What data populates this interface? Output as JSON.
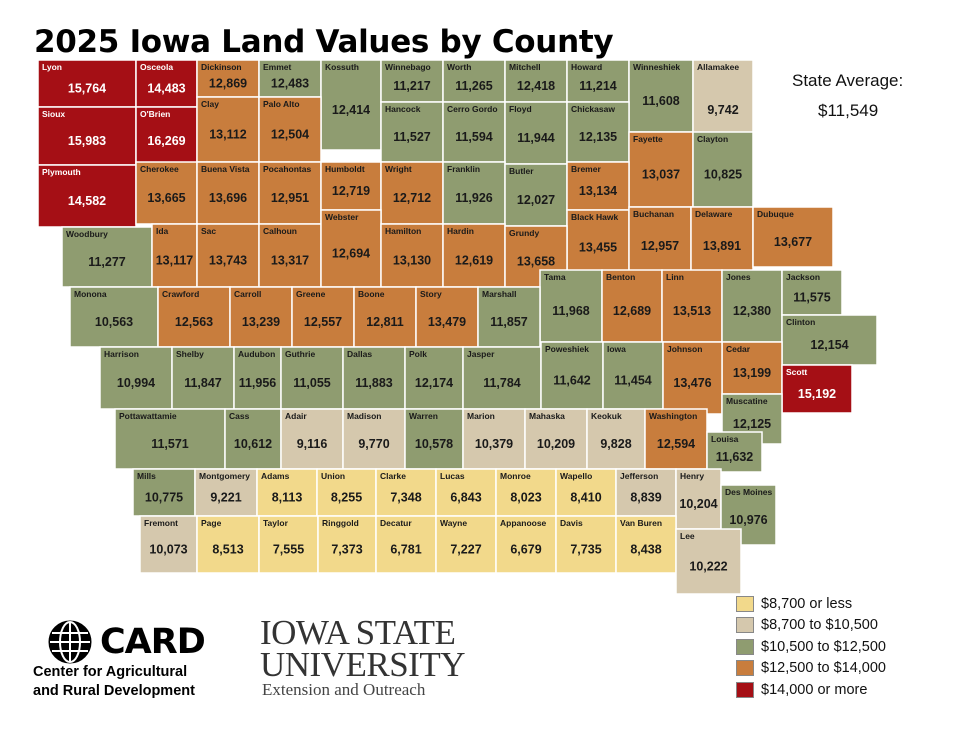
{
  "title": "2025 Iowa Land Values by County",
  "state_average": {
    "label": "State Average:",
    "value": "$11,549"
  },
  "legend": [
    {
      "label": "$8,700 or less",
      "color": "#f2d98b"
    },
    {
      "label": "$8,700 to $10,500",
      "color": "#d5c8ad"
    },
    {
      "label": "$10,500 to $12,500",
      "color": "#8f9c70"
    },
    {
      "label": "$12,500 to $14,000",
      "color": "#c87d3d"
    },
    {
      "label": "$14,000 or more",
      "color": "#a50f15"
    }
  ],
  "counties": [
    {
      "name": "Lyon",
      "value": "15,764",
      "class": 4
    },
    {
      "name": "Osceola",
      "value": "14,483",
      "class": 4
    },
    {
      "name": "Dickinson",
      "value": "12,869",
      "class": 3
    },
    {
      "name": "Emmet",
      "value": "12,483",
      "class": 2
    },
    {
      "name": "Kossuth",
      "value": "12,414",
      "class": 2
    },
    {
      "name": "Winnebago",
      "value": "11,217",
      "class": 2
    },
    {
      "name": "Worth",
      "value": "11,265",
      "class": 2
    },
    {
      "name": "Mitchell",
      "value": "12,418",
      "class": 2
    },
    {
      "name": "Howard",
      "value": "11,214",
      "class": 2
    },
    {
      "name": "Winneshiek",
      "value": "11,608",
      "class": 2
    },
    {
      "name": "Allamakee",
      "value": "9,742",
      "class": 1
    },
    {
      "name": "Sioux",
      "value": "15,983",
      "class": 4
    },
    {
      "name": "O'Brien",
      "value": "16,269",
      "class": 4
    },
    {
      "name": "Clay",
      "value": "13,112",
      "class": 3
    },
    {
      "name": "Palo Alto",
      "value": "12,504",
      "class": 3
    },
    {
      "name": "Hancock",
      "value": "11,527",
      "class": 2
    },
    {
      "name": "Cerro Gordo",
      "value": "11,594",
      "class": 2
    },
    {
      "name": "Floyd",
      "value": "11,944",
      "class": 2
    },
    {
      "name": "Chickasaw",
      "value": "12,135",
      "class": 2
    },
    {
      "name": "Fayette",
      "value": "13,037",
      "class": 3
    },
    {
      "name": "Clayton",
      "value": "10,825",
      "class": 2
    },
    {
      "name": "Plymouth",
      "value": "14,582",
      "class": 4
    },
    {
      "name": "Cherokee",
      "value": "13,665",
      "class": 3
    },
    {
      "name": "Buena Vista",
      "value": "13,696",
      "class": 3
    },
    {
      "name": "Pocahontas",
      "value": "12,951",
      "class": 3
    },
    {
      "name": "Humboldt",
      "value": "12,719",
      "class": 3
    },
    {
      "name": "Wright",
      "value": "12,712",
      "class": 3
    },
    {
      "name": "Franklin",
      "value": "11,926",
      "class": 2
    },
    {
      "name": "Butler",
      "value": "12,027",
      "class": 2
    },
    {
      "name": "Bremer",
      "value": "13,134",
      "class": 3
    },
    {
      "name": "Black Hawk",
      "value": "13,455",
      "class": 3
    },
    {
      "name": "Buchanan",
      "value": "12,957",
      "class": 3
    },
    {
      "name": "Delaware",
      "value": "13,891",
      "class": 3
    },
    {
      "name": "Dubuque",
      "value": "13,677",
      "class": 3
    },
    {
      "name": "Woodbury",
      "value": "11,277",
      "class": 2
    },
    {
      "name": "Ida",
      "value": "13,117",
      "class": 3
    },
    {
      "name": "Sac",
      "value": "13,743",
      "class": 3
    },
    {
      "name": "Calhoun",
      "value": "13,317",
      "class": 3
    },
    {
      "name": "Webster",
      "value": "12,694",
      "class": 3
    },
    {
      "name": "Hamilton",
      "value": "13,130",
      "class": 3
    },
    {
      "name": "Hardin",
      "value": "12,619",
      "class": 3
    },
    {
      "name": "Grundy",
      "value": "13,658",
      "class": 3
    },
    {
      "name": "Tama",
      "value": "11,968",
      "class": 2
    },
    {
      "name": "Benton",
      "value": "12,689",
      "class": 3
    },
    {
      "name": "Linn",
      "value": "13,513",
      "class": 3
    },
    {
      "name": "Jones",
      "value": "12,380",
      "class": 2
    },
    {
      "name": "Jackson",
      "value": "11,575",
      "class": 2
    },
    {
      "name": "Monona",
      "value": "10,563",
      "class": 2
    },
    {
      "name": "Crawford",
      "value": "12,563",
      "class": 3
    },
    {
      "name": "Carroll",
      "value": "13,239",
      "class": 3
    },
    {
      "name": "Greene",
      "value": "12,557",
      "class": 3
    },
    {
      "name": "Boone",
      "value": "12,811",
      "class": 3
    },
    {
      "name": "Story",
      "value": "13,479",
      "class": 3
    },
    {
      "name": "Marshall",
      "value": "11,857",
      "class": 2
    },
    {
      "name": "Clinton",
      "value": "12,154",
      "class": 2
    },
    {
      "name": "Cedar",
      "value": "13,199",
      "class": 3
    },
    {
      "name": "Harrison",
      "value": "10,994",
      "class": 2
    },
    {
      "name": "Shelby",
      "value": "11,847",
      "class": 2
    },
    {
      "name": "Audubon",
      "value": "11,956",
      "class": 2
    },
    {
      "name": "Guthrie",
      "value": "11,055",
      "class": 2
    },
    {
      "name": "Dallas",
      "value": "11,883",
      "class": 2
    },
    {
      "name": "Polk",
      "value": "12,174",
      "class": 2
    },
    {
      "name": "Jasper",
      "value": "11,784",
      "class": 2
    },
    {
      "name": "Poweshiek",
      "value": "11,642",
      "class": 2
    },
    {
      "name": "Iowa",
      "value": "11,454",
      "class": 2
    },
    {
      "name": "Johnson",
      "value": "13,476",
      "class": 3
    },
    {
      "name": "Scott",
      "value": "15,192",
      "class": 4
    },
    {
      "name": "Muscatine",
      "value": "12,125",
      "class": 2
    },
    {
      "name": "Pottawattamie",
      "value": "11,571",
      "class": 2
    },
    {
      "name": "Cass",
      "value": "10,612",
      "class": 2
    },
    {
      "name": "Adair",
      "value": "9,116",
      "class": 1
    },
    {
      "name": "Madison",
      "value": "9,770",
      "class": 1
    },
    {
      "name": "Warren",
      "value": "10,578",
      "class": 2
    },
    {
      "name": "Marion",
      "value": "10,379",
      "class": 1
    },
    {
      "name": "Mahaska",
      "value": "10,209",
      "class": 1
    },
    {
      "name": "Keokuk",
      "value": "9,828",
      "class": 1
    },
    {
      "name": "Washington",
      "value": "12,594",
      "class": 3
    },
    {
      "name": "Louisa",
      "value": "11,632",
      "class": 2
    },
    {
      "name": "Mills",
      "value": "10,775",
      "class": 2
    },
    {
      "name": "Montgomery",
      "value": "9,221",
      "class": 1
    },
    {
      "name": "Adams",
      "value": "8,113",
      "class": 0
    },
    {
      "name": "Union",
      "value": "8,255",
      "class": 0
    },
    {
      "name": "Clarke",
      "value": "7,348",
      "class": 0
    },
    {
      "name": "Lucas",
      "value": "6,843",
      "class": 0
    },
    {
      "name": "Monroe",
      "value": "8,023",
      "class": 0
    },
    {
      "name": "Wapello",
      "value": "8,410",
      "class": 0
    },
    {
      "name": "Jefferson",
      "value": "8,839",
      "class": 1
    },
    {
      "name": "Henry",
      "value": "10,204",
      "class": 1
    },
    {
      "name": "Des Moines",
      "value": "10,976",
      "class": 2
    },
    {
      "name": "Fremont",
      "value": "10,073",
      "class": 1
    },
    {
      "name": "Page",
      "value": "8,513",
      "class": 0
    },
    {
      "name": "Taylor",
      "value": "7,555",
      "class": 0
    },
    {
      "name": "Ringgold",
      "value": "7,373",
      "class": 0
    },
    {
      "name": "Decatur",
      "value": "6,781",
      "class": 0
    },
    {
      "name": "Wayne",
      "value": "7,227",
      "class": 0
    },
    {
      "name": "Appanoose",
      "value": "6,679",
      "class": 0
    },
    {
      "name": "Davis",
      "value": "7,735",
      "class": 0
    },
    {
      "name": "Van Buren",
      "value": "8,438",
      "class": 0
    },
    {
      "name": "Lee",
      "value": "10,222",
      "class": 1
    }
  ],
  "logos": {
    "card_acronym": "CARD",
    "card_line1": "Center for Agricultural",
    "card_line2": "and Rural Development",
    "isu_line1": "IOWA STATE",
    "isu_line2": "UNIVERSITY",
    "isu_line3": "Extension and Outreach"
  }
}
